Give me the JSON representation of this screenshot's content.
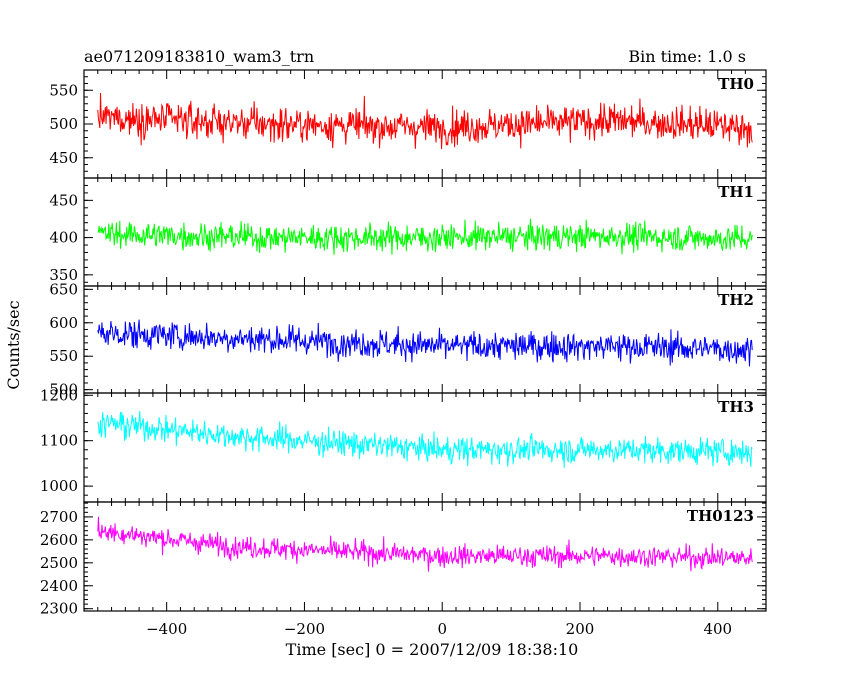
{
  "header": {
    "title": "ae071209183810_wam3_trn",
    "bin_time": "Bin time: 1.0 s"
  },
  "chart_data": {
    "type": "line",
    "xlabel": "Time [sec] 0 = 2007/12/09 18:38:10",
    "ylabel": "Counts/sec",
    "xlim": [
      -520,
      470
    ],
    "x_ticks": [
      -400,
      -200,
      0,
      200,
      400
    ],
    "data_x_range": [
      -500,
      450
    ],
    "bin_time_s": 1.0,
    "panels": [
      {
        "name": "TH0",
        "color": "#ff0000",
        "ylim": [
          420,
          580
        ],
        "yticks": [
          450,
          500,
          550
        ],
        "trend": [
          [
            -500,
            510
          ],
          [
            -250,
            500
          ],
          [
            0,
            495
          ],
          [
            250,
            505
          ],
          [
            450,
            495
          ]
        ],
        "noise": 35
      },
      {
        "name": "TH1",
        "color": "#00ff00",
        "ylim": [
          335,
          480
        ],
        "yticks": [
          350,
          400,
          450
        ],
        "trend": [
          [
            -500,
            405
          ],
          [
            -250,
            400
          ],
          [
            0,
            400
          ],
          [
            250,
            402
          ],
          [
            450,
            398
          ]
        ],
        "noise": 25
      },
      {
        "name": "TH2",
        "color": "#0000ff",
        "ylim": [
          495,
          655
        ],
        "yticks": [
          500,
          550,
          600,
          650
        ],
        "trend": [
          [
            -500,
            585
          ],
          [
            -250,
            575
          ],
          [
            0,
            565
          ],
          [
            250,
            565
          ],
          [
            450,
            560
          ]
        ],
        "noise": 30
      },
      {
        "name": "TH3",
        "color": "#00ffff",
        "ylim": [
          965,
          1205
        ],
        "yticks": [
          1000,
          1100,
          1200
        ],
        "trend": [
          [
            -500,
            1140
          ],
          [
            -300,
            1110
          ],
          [
            0,
            1080
          ],
          [
            250,
            1080
          ],
          [
            450,
            1075
          ]
        ],
        "noise": 40
      },
      {
        "name": "TH0123",
        "color": "#ff00ff",
        "ylim": [
          2290,
          2765
        ],
        "yticks": [
          2300,
          2400,
          2500,
          2600,
          2700
        ],
        "trend": [
          [
            -500,
            2640
          ],
          [
            -300,
            2570
          ],
          [
            0,
            2530
          ],
          [
            250,
            2530
          ],
          [
            450,
            2520
          ]
        ],
        "noise": 65
      }
    ]
  }
}
